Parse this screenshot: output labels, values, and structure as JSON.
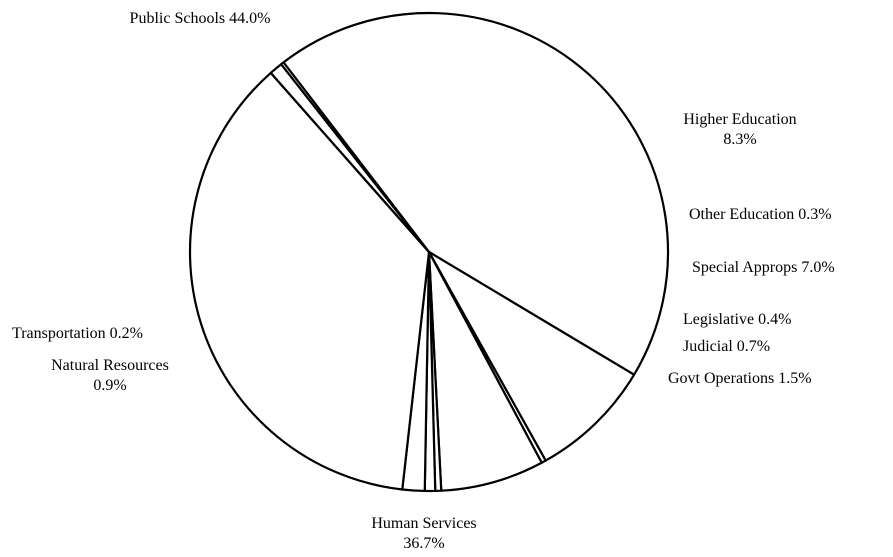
{
  "chart_data": {
    "type": "pie",
    "title": "",
    "categories": [
      "Public Schools",
      "Higher Education",
      "Other Education",
      "Special Approps",
      "Legislative",
      "Judicial",
      "Govt Operations",
      "Human Services",
      "Natural Resources",
      "Transportation"
    ],
    "values": [
      44.0,
      8.3,
      0.3,
      7.0,
      0.4,
      0.7,
      1.5,
      36.7,
      0.9,
      0.2
    ],
    "unit": "%",
    "slice_fill": "#ffffff",
    "slice_stroke": "#000000",
    "legend": "none",
    "labels": [
      {
        "category": "Public Schools",
        "lines": [
          "Public Schools 44.0%"
        ]
      },
      {
        "category": "Higher Education",
        "lines": [
          "Higher Education",
          "8.3%"
        ]
      },
      {
        "category": "Other Education",
        "lines": [
          "Other Education 0.3%"
        ]
      },
      {
        "category": "Special Approps",
        "lines": [
          "Special Approps 7.0%"
        ]
      },
      {
        "category": "Legislative",
        "lines": [
          "Legislative 0.4%"
        ]
      },
      {
        "category": "Judicial",
        "lines": [
          "Judicial 0.7%"
        ]
      },
      {
        "category": "Govt Operations",
        "lines": [
          "Govt Operations 1.5%"
        ]
      },
      {
        "category": "Human Services",
        "lines": [
          "Human Services",
          "36.7%"
        ]
      },
      {
        "category": "Natural Resources",
        "lines": [
          "Natural Resources",
          "0.9%"
        ]
      },
      {
        "category": "Transportation",
        "lines": [
          "Transportation 0.2%"
        ]
      }
    ]
  }
}
